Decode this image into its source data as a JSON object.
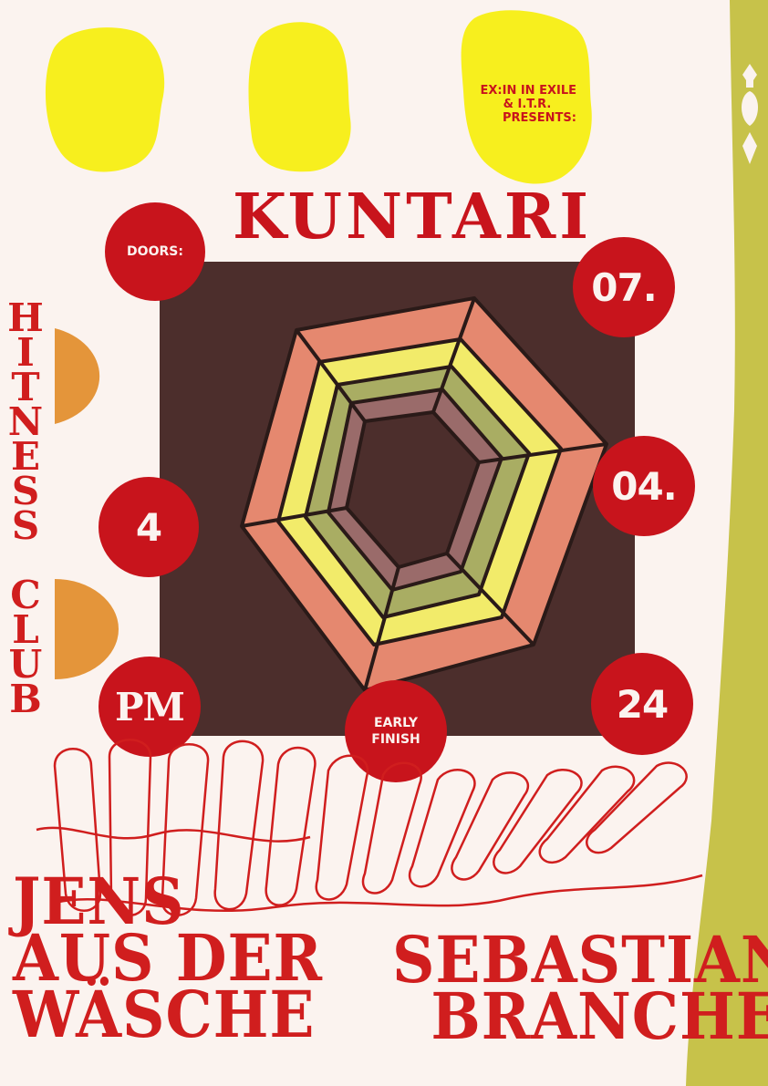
{
  "presenter": {
    "line1": "EX:IN IN EXILE",
    "line2": "& I.T.R.",
    "line3": "PRESENTS:"
  },
  "title": "KUNTARI",
  "venue": "HITNESS CLUB",
  "venue_letters": "H\nI\nT\nN\nE\nS\nS\n\nC\nL\nU\nB",
  "doors": {
    "label": "DOORS:",
    "time": "4",
    "meridiem": "PM"
  },
  "date": {
    "day": "07.",
    "month": "04.",
    "year": "24"
  },
  "early_finish": {
    "line1": "EARLY",
    "line2": "FINISH"
  },
  "artists": {
    "left": {
      "line1": "JENS",
      "line2": "AUS DER",
      "line3": "WÄSCHE"
    },
    "right": {
      "line1": "SEBASTIAN",
      "line2": "BRANCHE"
    }
  },
  "colors": {
    "red": "#c8141c",
    "yellow": "#f7ef1e",
    "olive": "#c7c24a",
    "brown": "#4c2e2c",
    "orange": "#e4953a",
    "background": "#fbf3ef"
  }
}
